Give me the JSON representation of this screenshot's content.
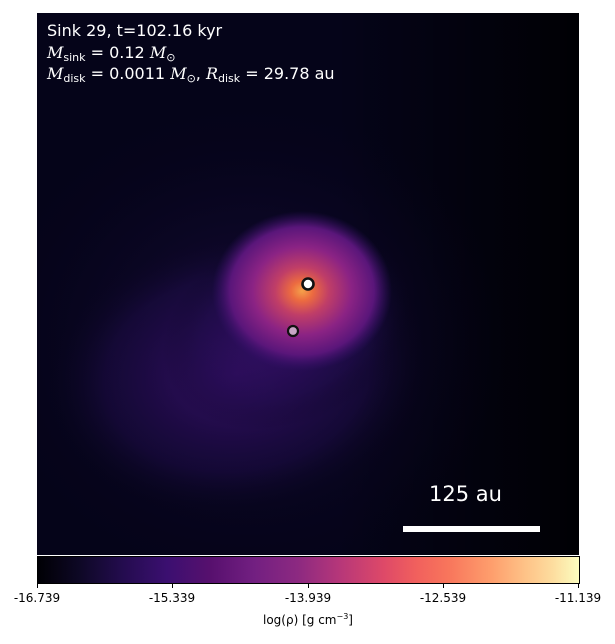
{
  "annotation": {
    "sink_line": "Sink 29, t=102.16 kyr",
    "mass_symbol": "M",
    "mass_subscript": "sink",
    "mass_value": " = 0.12 ",
    "mass_unit_symbol": "M",
    "mass_unit_subscript": "⊙",
    "disk_mass_symbol": "M",
    "disk_mass_subscript": "disk",
    "disk_mass_value": " = 0.0011 ",
    "disk_mass_unit_symbol": "M",
    "disk_mass_unit_subscript": "⊙",
    "disk_sep": ", ",
    "disk_radius_symbol": "R",
    "disk_radius_subscript": "disk",
    "disk_radius_value": " = 29.78 au"
  },
  "scalebar": {
    "label": "125 au"
  },
  "colorbar": {
    "colormap": "inferno",
    "ticks": [
      "-16.739",
      "-15.339",
      "-13.939",
      "-12.539",
      "-11.139"
    ],
    "label_prefix": "log(ρ) [g cm",
    "label_exp": "−3",
    "label_suffix": "]"
  },
  "markers": [
    {
      "name": "primary-sink",
      "fill": "#ffffff",
      "edge": "#111111"
    },
    {
      "name": "secondary-sink",
      "fill": "#c9a6c6",
      "edge": "#111111"
    }
  ]
}
